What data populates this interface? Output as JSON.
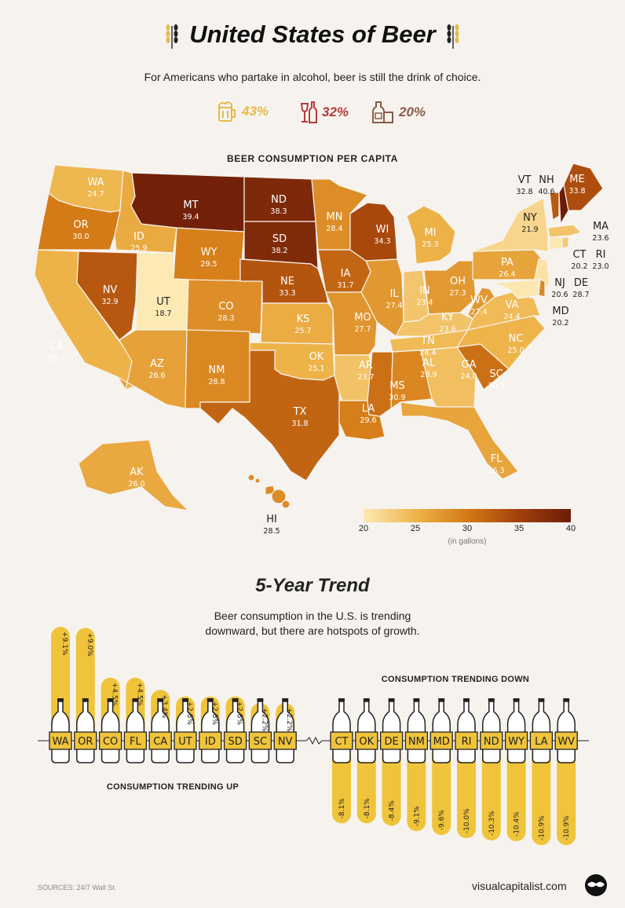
{
  "title": "United States of Beer",
  "subtitle": "For Americans who partake in alcohol, beer is still the drink of choice.",
  "drink_shares": [
    {
      "icon": "beer-mug-icon",
      "value": "43%",
      "color": "#e6b94a"
    },
    {
      "icon": "wine-icon",
      "value": "32%",
      "color": "#b13b3b"
    },
    {
      "icon": "liquor-icon",
      "value": "20%",
      "color": "#8a5a45"
    }
  ],
  "map_title": "BEER CONSUMPTION PER CAPITA",
  "legend": {
    "ticks": [
      "20",
      "25",
      "30",
      "35",
      "40"
    ],
    "unit": "(in gallons)",
    "colors": [
      "#fde9b4",
      "#e9a332",
      "#c96a12",
      "#8a2b0a",
      "#6b1d07"
    ],
    "range": [
      20,
      40
    ]
  },
  "chart_data": [
    {
      "type": "choropleth",
      "title": "BEER CONSUMPTION PER CAPITA",
      "unit": "(in gallons)",
      "scale": [
        20,
        40
      ],
      "states": [
        {
          "abbr": "WA",
          "value": 24.7
        },
        {
          "abbr": "OR",
          "value": 30.0
        },
        {
          "abbr": "CA",
          "value": 25.1
        },
        {
          "abbr": "NV",
          "value": 32.9
        },
        {
          "abbr": "ID",
          "value": 25.9
        },
        {
          "abbr": "MT",
          "value": 39.4
        },
        {
          "abbr": "WY",
          "value": 29.5
        },
        {
          "abbr": "UT",
          "value": 18.7
        },
        {
          "abbr": "AZ",
          "value": 26.6
        },
        {
          "abbr": "CO",
          "value": 28.3
        },
        {
          "abbr": "NM",
          "value": 28.8
        },
        {
          "abbr": "ND",
          "value": 38.3
        },
        {
          "abbr": "SD",
          "value": 38.2
        },
        {
          "abbr": "NE",
          "value": 33.3
        },
        {
          "abbr": "KS",
          "value": 25.7
        },
        {
          "abbr": "OK",
          "value": 25.1
        },
        {
          "abbr": "TX",
          "value": 31.8
        },
        {
          "abbr": "MN",
          "value": 28.4
        },
        {
          "abbr": "IA",
          "value": 31.7
        },
        {
          "abbr": "MO",
          "value": 27.7
        },
        {
          "abbr": "AR",
          "value": 23.7
        },
        {
          "abbr": "LA",
          "value": 29.6
        },
        {
          "abbr": "WI",
          "value": 34.3
        },
        {
          "abbr": "IL",
          "value": 27.4
        },
        {
          "abbr": "MI",
          "value": 25.3
        },
        {
          "abbr": "IN",
          "value": 23.4
        },
        {
          "abbr": "OH",
          "value": 27.3
        },
        {
          "abbr": "KY",
          "value": 23.6
        },
        {
          "abbr": "TN",
          "value": 24.4
        },
        {
          "abbr": "MS",
          "value": 30.9
        },
        {
          "abbr": "AL",
          "value": 28.9
        },
        {
          "abbr": "GA",
          "value": 24.0
        },
        {
          "abbr": "FL",
          "value": 26.3
        },
        {
          "abbr": "SC",
          "value": 30.9
        },
        {
          "abbr": "NC",
          "value": 25.0
        },
        {
          "abbr": "VA",
          "value": 24.4
        },
        {
          "abbr": "WV",
          "value": 27.4
        },
        {
          "abbr": "PA",
          "value": 26.4
        },
        {
          "abbr": "NY",
          "value": 21.9
        },
        {
          "abbr": "VT",
          "value": 32.8
        },
        {
          "abbr": "NH",
          "value": 40.6
        },
        {
          "abbr": "ME",
          "value": 33.8
        },
        {
          "abbr": "MA",
          "value": 23.6
        },
        {
          "abbr": "CT",
          "value": 20.2
        },
        {
          "abbr": "RI",
          "value": 23.0
        },
        {
          "abbr": "NJ",
          "value": 20.6
        },
        {
          "abbr": "DE",
          "value": 28.7
        },
        {
          "abbr": "MD",
          "value": 20.2
        },
        {
          "abbr": "AK",
          "value": 26.0
        },
        {
          "abbr": "HI",
          "value": 28.5
        }
      ]
    },
    {
      "type": "bar",
      "title": "5-Year Trend",
      "subtitle": "Beer consumption in the U.S. is trending downward, but there are hotspots of growth.",
      "up_label": "CONSUMPTION TRENDING UP",
      "down_label": "CONSUMPTION TRENDING DOWN",
      "trending_up": [
        {
          "abbr": "WA",
          "value": 9.1,
          "label": "+9.1%"
        },
        {
          "abbr": "OR",
          "value": 9.0,
          "label": "+9.0%"
        },
        {
          "abbr": "CO",
          "value": 4.5,
          "label": "+4.5%"
        },
        {
          "abbr": "FL",
          "value": 4.5,
          "label": "+4.5%"
        },
        {
          "abbr": "CA",
          "value": 3.4,
          "label": "+3.4%"
        },
        {
          "abbr": "UT",
          "value": 2.8,
          "label": "+2.8%"
        },
        {
          "abbr": "ID",
          "value": 2.8,
          "label": "+2.8%"
        },
        {
          "abbr": "SD",
          "value": 2.8,
          "label": "+2.8%"
        },
        {
          "abbr": "SC",
          "value": 2.2,
          "label": "+2.2%"
        },
        {
          "abbr": "NV",
          "value": 2.2,
          "label": "+2.2%"
        }
      ],
      "trending_down": [
        {
          "abbr": "CT",
          "value": -8.1,
          "label": "-8.1%"
        },
        {
          "abbr": "OK",
          "value": -8.1,
          "label": "-8.1%"
        },
        {
          "abbr": "DE",
          "value": -8.4,
          "label": "-8.4%"
        },
        {
          "abbr": "NM",
          "value": -9.1,
          "label": "-9.1%"
        },
        {
          "abbr": "MD",
          "value": -9.6,
          "label": "-9.6%"
        },
        {
          "abbr": "RI",
          "value": -10.0,
          "label": "-10.0%"
        },
        {
          "abbr": "ND",
          "value": -10.3,
          "label": "-10.3%"
        },
        {
          "abbr": "WY",
          "value": -10.4,
          "label": "-10.4%"
        },
        {
          "abbr": "LA",
          "value": -10.9,
          "label": "-10.9%"
        },
        {
          "abbr": "WV",
          "value": -10.9,
          "label": "-10.9%"
        }
      ]
    }
  ],
  "sources": "SOURCES: 24/7 Wall St.",
  "brand": "visualcapitalist.com"
}
